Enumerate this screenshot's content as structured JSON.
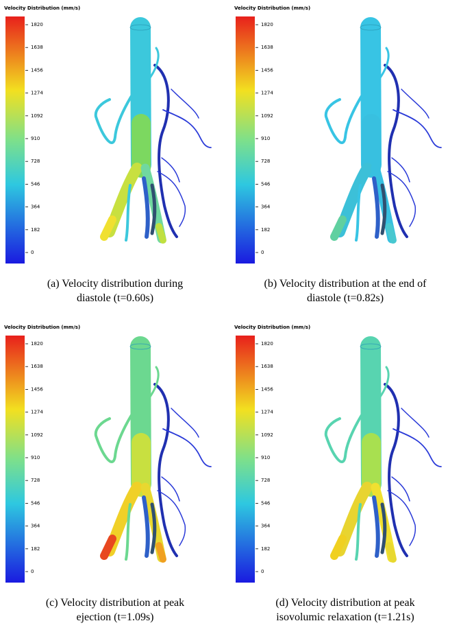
{
  "panels": [
    {
      "colorbar": {
        "title": "Velocity Distribution (mm/s)",
        "ticks": [
          1820,
          1638,
          1456,
          1274,
          1092,
          910,
          728,
          546,
          364,
          182,
          0
        ]
      },
      "caption": [
        "(a) Velocity distribution during",
        "diastole (t=0.60s)"
      ]
    },
    {
      "colorbar": {
        "title": "Velocity Distribution (mm/s)",
        "ticks": [
          1820,
          1638,
          1456,
          1274,
          1092,
          910,
          728,
          546,
          364,
          182,
          0
        ]
      },
      "caption": [
        "(b) Velocity distribution at the end of",
        "diastole (t=0.82s)"
      ]
    },
    {
      "colorbar": {
        "title": "Velocity Distribution (mm/s)",
        "ticks": [
          1820,
          1638,
          1456,
          1274,
          1092,
          910,
          728,
          546,
          364,
          182,
          0
        ]
      },
      "caption": [
        "(c) Velocity distribution at peak",
        "ejection (t=1.09s)"
      ]
    },
    {
      "colorbar": {
        "title": "Velocity Distribution (mm/s)",
        "ticks": [
          1820,
          1638,
          1456,
          1274,
          1092,
          910,
          728,
          546,
          364,
          182,
          0
        ]
      },
      "caption": [
        "(d) Velocity distribution at peak",
        "isovolumic relaxation (t=1.21s)"
      ]
    }
  ]
}
